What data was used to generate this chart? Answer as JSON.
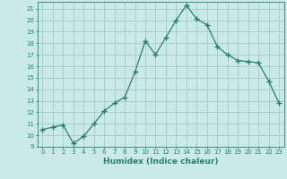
{
  "xlabel": "Humidex (Indice chaleur)",
  "ylabel": "",
  "x": [
    0,
    1,
    2,
    3,
    4,
    5,
    6,
    7,
    8,
    9,
    10,
    11,
    12,
    13,
    14,
    15,
    16,
    17,
    18,
    19,
    20,
    21,
    22,
    23
  ],
  "y": [
    10.5,
    10.7,
    10.9,
    9.3,
    9.9,
    11.0,
    12.1,
    12.8,
    13.3,
    15.5,
    18.2,
    17.0,
    18.5,
    20.0,
    21.3,
    20.1,
    19.6,
    17.7,
    17.0,
    16.5,
    16.4,
    16.3,
    14.7,
    12.8
  ],
  "line_color": "#2d7d6f",
  "marker": "+",
  "marker_size": 4,
  "bg_color": "#caeae5",
  "grid_color": "#aacfca",
  "axis_color": "#2d7d6f",
  "tick_color": "#2d7d6f",
  "label_color": "#2d7d6f",
  "ylim": [
    9,
    21.6
  ],
  "xlim": [
    -0.5,
    23.5
  ],
  "yticks": [
    9,
    10,
    11,
    12,
    13,
    14,
    15,
    16,
    17,
    18,
    19,
    20,
    21
  ],
  "xticks": [
    0,
    1,
    2,
    3,
    4,
    5,
    6,
    7,
    8,
    9,
    10,
    11,
    12,
    13,
    14,
    15,
    16,
    17,
    18,
    19,
    20,
    21,
    22,
    23
  ],
  "xtick_labels": [
    "0",
    "1",
    "2",
    "3",
    "4",
    "5",
    "6",
    "7",
    "8",
    "9",
    "10",
    "11",
    "12",
    "13",
    "14",
    "15",
    "16",
    "17",
    "18",
    "19",
    "20",
    "21",
    "22",
    "23"
  ],
  "ytick_labels": [
    "9",
    "10",
    "11",
    "12",
    "13",
    "14",
    "15",
    "16",
    "17",
    "18",
    "19",
    "20",
    "21"
  ]
}
